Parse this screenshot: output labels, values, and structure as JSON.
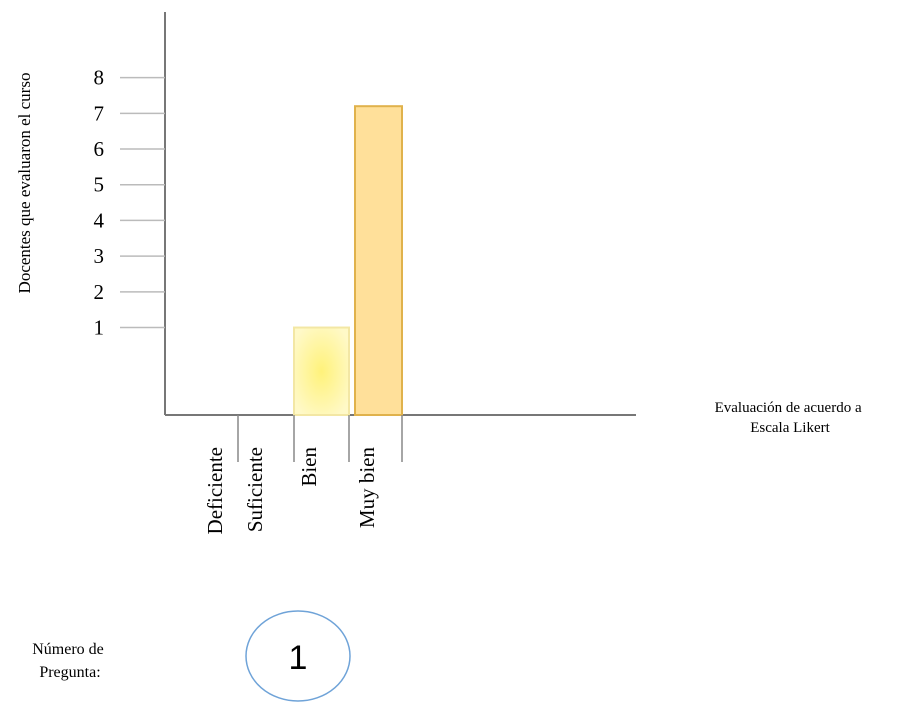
{
  "chart_data": {
    "type": "bar",
    "ylabel": "Docentes que evaluaron el curso",
    "xlabel_lines": [
      "Evaluación de acuerdo a",
      "Escala Likert"
    ],
    "categories": [
      "Deficiente",
      "Suficiente",
      "Bien",
      "Muy bien"
    ],
    "values": [
      0,
      0,
      1,
      7.2
    ],
    "yticks": [
      1,
      2,
      3,
      4,
      5,
      6,
      7,
      8
    ],
    "grid": false,
    "legend": "none",
    "colors": {
      "bar_bien": "#fff6a8",
      "bar_bien_glow": "#fff27a",
      "bar_bien_stroke": "#f3e7a4",
      "bar_muybien": "#ffe09a",
      "bar_muybien_stroke": "#e0b24c",
      "axis": "#777777",
      "tick": "#bbbbbb"
    }
  },
  "question": {
    "label_lines": [
      "Número de",
      "Pregunta:"
    ],
    "number": "1",
    "circle_color": "#6fa3d8"
  }
}
